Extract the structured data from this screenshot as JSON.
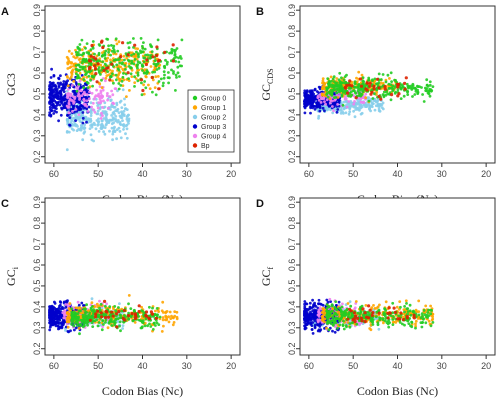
{
  "chart_data": {
    "type": "scatter",
    "xlabel": "Codon Bias (Nc)",
    "x_ticks": [
      "60",
      "50",
      "40",
      "30",
      "20"
    ],
    "y_ticks": [
      "0.2",
      "0.3",
      "0.4",
      "0.5",
      "0.6",
      "0.7",
      "0.8",
      "0.9"
    ],
    "xlim": [
      62,
      18
    ],
    "ylim": [
      0.17,
      0.92
    ],
    "legend": {
      "position": "lower-right",
      "entries": [
        {
          "label": "Group 0",
          "color": "#22cc22"
        },
        {
          "label": "Group 1",
          "color": "#ffa500"
        },
        {
          "label": "Group 2",
          "color": "#87ceeb"
        },
        {
          "label": "Group 3",
          "color": "#0000cc"
        },
        {
          "label": "Group 4",
          "color": "#ee82ee"
        },
        {
          "label": "Bp",
          "color": "#dd2200"
        }
      ]
    },
    "panels": [
      {
        "id": "A",
        "ylabel": "GC3",
        "clusters": [
          {
            "series": "Group 2",
            "color": "#87ceeb",
            "count": 320,
            "x_range": [
              57,
              43
            ],
            "y_mean": 0.39,
            "y_sd": 0.045
          },
          {
            "series": "Group 3",
            "color": "#0000cc",
            "count": 360,
            "x_range": [
              61,
              52
            ],
            "y_mean": 0.48,
            "y_sd": 0.045
          },
          {
            "series": "Group 4",
            "color": "#ee82ee",
            "count": 110,
            "x_range": [
              57,
              46
            ],
            "y_mean": 0.48,
            "y_sd": 0.04
          },
          {
            "series": "Group 1",
            "color": "#ffa500",
            "count": 260,
            "x_range": [
              57,
              36
            ],
            "y_mean": 0.63,
            "y_sd": 0.05
          },
          {
            "series": "Group 0",
            "color": "#22cc22",
            "count": 320,
            "x_range": [
              55,
              31
            ],
            "y_mean": 0.64,
            "y_sd": 0.055
          },
          {
            "series": "Bp",
            "color": "#dd2200",
            "count": 40,
            "x_range": [
              52,
              33
            ],
            "y_mean": 0.65,
            "y_sd": 0.06
          }
        ]
      },
      {
        "id": "B",
        "ylabel": "GC_CDS",
        "clusters": [
          {
            "series": "Group 2",
            "color": "#87ceeb",
            "count": 260,
            "x_range": [
              58,
              43
            ],
            "y_mean": 0.45,
            "y_sd": 0.02
          },
          {
            "series": "Group 3",
            "color": "#0000cc",
            "count": 330,
            "x_range": [
              61,
              53
            ],
            "y_mean": 0.47,
            "y_sd": 0.025
          },
          {
            "series": "Group 4",
            "color": "#ee82ee",
            "count": 90,
            "x_range": [
              58,
              47
            ],
            "y_mean": 0.48,
            "y_sd": 0.02
          },
          {
            "series": "Group 1",
            "color": "#ffa500",
            "count": 230,
            "x_range": [
              57,
              40
            ],
            "y_mean": 0.535,
            "y_sd": 0.022
          },
          {
            "series": "Group 0",
            "color": "#22cc22",
            "count": 300,
            "x_range": [
              56,
              32
            ],
            "y_mean": 0.53,
            "y_sd": 0.025
          },
          {
            "series": "Bp",
            "color": "#dd2200",
            "count": 35,
            "x_range": [
              52,
              38
            ],
            "y_mean": 0.535,
            "y_sd": 0.02
          }
        ]
      },
      {
        "id": "C",
        "ylabel": "GC_i",
        "clusters": [
          {
            "series": "Group 2",
            "color": "#87ceeb",
            "count": 200,
            "x_range": [
              59,
              44
            ],
            "y_mean": 0.35,
            "y_sd": 0.025
          },
          {
            "series": "Group 3",
            "color": "#0000cc",
            "count": 330,
            "x_range": [
              61,
              53
            ],
            "y_mean": 0.355,
            "y_sd": 0.03
          },
          {
            "series": "Group 4",
            "color": "#ee82ee",
            "count": 90,
            "x_range": [
              58,
              47
            ],
            "y_mean": 0.36,
            "y_sd": 0.03
          },
          {
            "series": "Group 1",
            "color": "#ffa500",
            "count": 240,
            "x_range": [
              57,
              32
            ],
            "y_mean": 0.36,
            "y_sd": 0.025
          },
          {
            "series": "Group 0",
            "color": "#22cc22",
            "count": 280,
            "x_range": [
              56,
              36
            ],
            "y_mean": 0.35,
            "y_sd": 0.025
          },
          {
            "series": "Bp",
            "color": "#dd2200",
            "count": 35,
            "x_range": [
              52,
              36
            ],
            "y_mean": 0.36,
            "y_sd": 0.02
          }
        ]
      },
      {
        "id": "D",
        "ylabel": "GC_f",
        "clusters": [
          {
            "series": "Group 2",
            "color": "#87ceeb",
            "count": 200,
            "x_range": [
              59,
              44
            ],
            "y_mean": 0.35,
            "y_sd": 0.025
          },
          {
            "series": "Group 3",
            "color": "#0000cc",
            "count": 330,
            "x_range": [
              61,
              53
            ],
            "y_mean": 0.355,
            "y_sd": 0.03
          },
          {
            "series": "Group 4",
            "color": "#ee82ee",
            "count": 90,
            "x_range": [
              58,
              47
            ],
            "y_mean": 0.36,
            "y_sd": 0.03
          },
          {
            "series": "Group 1",
            "color": "#ffa500",
            "count": 240,
            "x_range": [
              57,
              32
            ],
            "y_mean": 0.36,
            "y_sd": 0.025
          },
          {
            "series": "Group 0",
            "color": "#22cc22",
            "count": 280,
            "x_range": [
              56,
              32
            ],
            "y_mean": 0.355,
            "y_sd": 0.025
          },
          {
            "series": "Bp",
            "color": "#dd2200",
            "count": 35,
            "x_range": [
              52,
              36
            ],
            "y_mean": 0.36,
            "y_sd": 0.02
          }
        ]
      }
    ]
  }
}
